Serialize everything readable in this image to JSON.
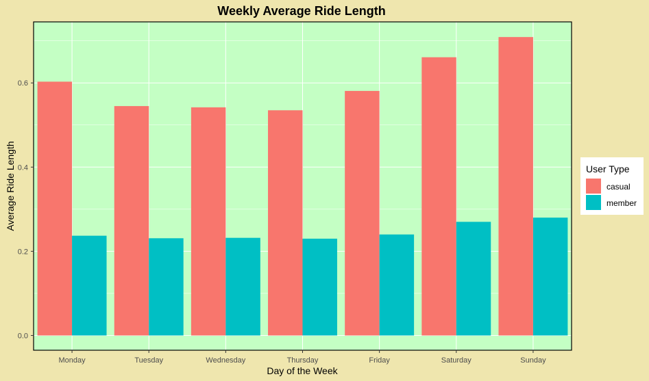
{
  "chart_data": {
    "type": "bar",
    "title": "Weekly Average Ride Length",
    "xlabel": "Day of the Week",
    "ylabel": "Average Ride Length",
    "categories": [
      "Monday",
      "Tuesday",
      "Wednesday",
      "Thursday",
      "Friday",
      "Saturday",
      "Sunday"
    ],
    "series": [
      {
        "name": "casual",
        "color": "#F8766D",
        "values": [
          0.603,
          0.545,
          0.542,
          0.535,
          0.581,
          0.661,
          0.709
        ]
      },
      {
        "name": "member",
        "color": "#00BFC4",
        "values": [
          0.237,
          0.231,
          0.232,
          0.23,
          0.24,
          0.27,
          0.28
        ]
      }
    ],
    "ylim": [
      -0.035,
      0.745
    ],
    "yticks": [
      0.0,
      0.2,
      0.4,
      0.6
    ],
    "ytick_labels": [
      "0.0",
      "0.2",
      "0.4",
      "0.6"
    ],
    "legend": {
      "title": "User Type",
      "position": "right"
    },
    "grid": true,
    "colors": {
      "page_background": "#EFE6AE",
      "panel_background": "#C4FFC4",
      "grid": "#FFFFFF"
    }
  }
}
